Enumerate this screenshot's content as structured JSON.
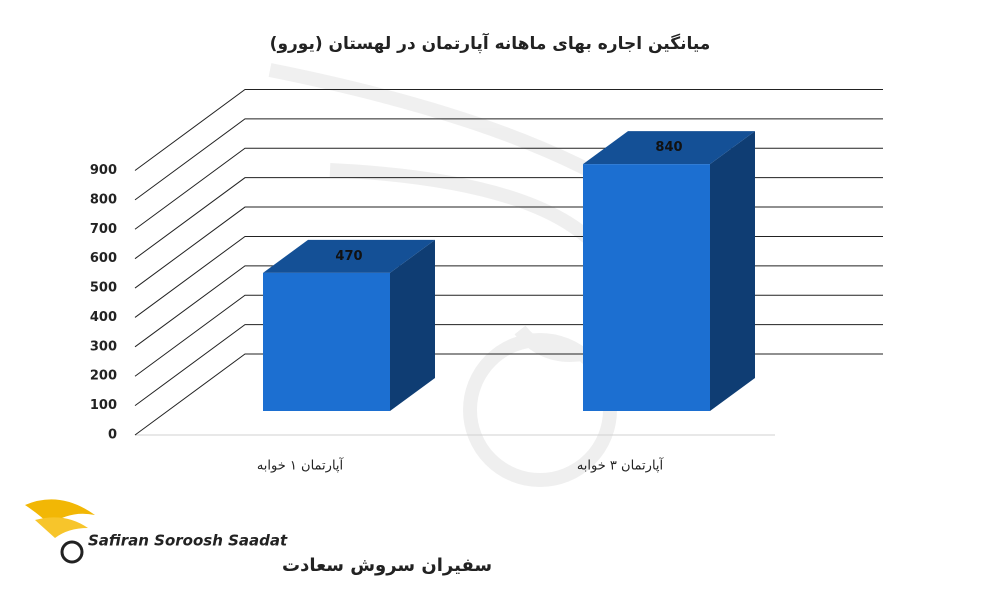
{
  "chart_data": {
    "type": "bar",
    "title": "میانگین اجاره بهای ماهانه آپارتمان در لهستان (یورو)",
    "categories": [
      "آپارتمان ۱ خوابه",
      "آپارتمان ۳ خوابه"
    ],
    "values": [
      470,
      840
    ],
    "color": "#1c6fd1",
    "ylim": [
      0,
      900
    ],
    "yticks": [
      0,
      100,
      200,
      300,
      400,
      500,
      600,
      700,
      800,
      900
    ],
    "grid": true
  },
  "logo": {
    "latin": "Safiran Soroosh Saadat",
    "persian": "سفیران سروش سعادت"
  }
}
